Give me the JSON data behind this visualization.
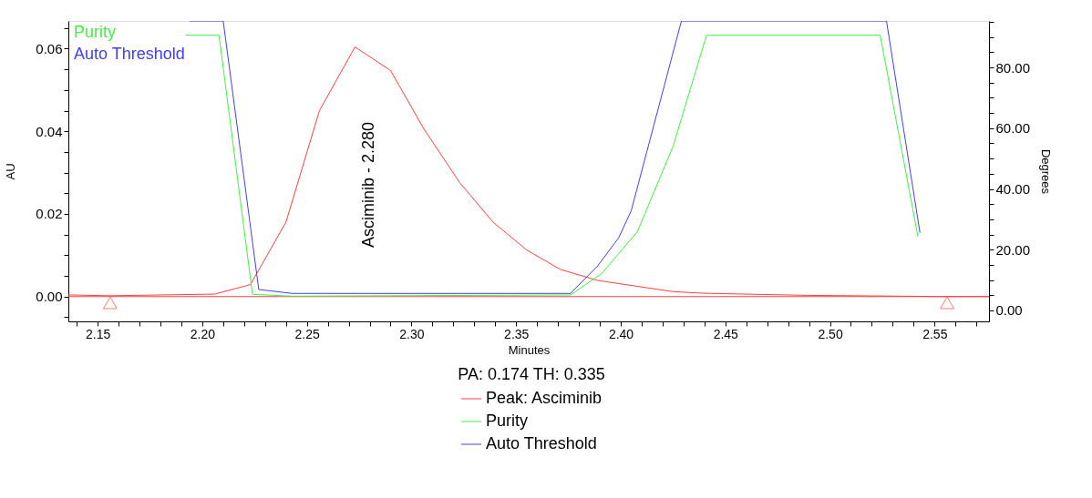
{
  "chart_data": {
    "type": "line",
    "xlabel": "Minutes",
    "ylabel": "AU",
    "y2label": "Degrees",
    "legend_title": "PA:  0.174  TH:  0.335",
    "legend": "bottom",
    "grid": false,
    "line_style": "solid",
    "marker": "none",
    "xlim": [
      2.136,
      2.576
    ],
    "xticks": [
      {
        "value": 2.14,
        "label": null
      },
      {
        "value": 2.15,
        "label": "2.15"
      },
      {
        "value": 2.16,
        "label": null
      },
      {
        "value": 2.17,
        "label": null
      },
      {
        "value": 2.18,
        "label": null
      },
      {
        "value": 2.19,
        "label": null
      },
      {
        "value": 2.2,
        "label": "2.20"
      },
      {
        "value": 2.21,
        "label": null
      },
      {
        "value": 2.22,
        "label": null
      },
      {
        "value": 2.23,
        "label": null
      },
      {
        "value": 2.24,
        "label": null
      },
      {
        "value": 2.25,
        "label": "2.25"
      },
      {
        "value": 2.26,
        "label": null
      },
      {
        "value": 2.27,
        "label": null
      },
      {
        "value": 2.28,
        "label": null
      },
      {
        "value": 2.29,
        "label": null
      },
      {
        "value": 2.3,
        "label": "2.30"
      },
      {
        "value": 2.31,
        "label": null
      },
      {
        "value": 2.32,
        "label": null
      },
      {
        "value": 2.33,
        "label": null
      },
      {
        "value": 2.34,
        "label": null
      },
      {
        "value": 2.35,
        "label": "2.35"
      },
      {
        "value": 2.36,
        "label": null
      },
      {
        "value": 2.37,
        "label": null
      },
      {
        "value": 2.38,
        "label": null
      },
      {
        "value": 2.39,
        "label": null
      },
      {
        "value": 2.4,
        "label": "2.40"
      },
      {
        "value": 2.41,
        "label": null
      },
      {
        "value": 2.42,
        "label": null
      },
      {
        "value": 2.43,
        "label": null
      },
      {
        "value": 2.44,
        "label": null
      },
      {
        "value": 2.45,
        "label": "2.45"
      },
      {
        "value": 2.46,
        "label": null
      },
      {
        "value": 2.47,
        "label": null
      },
      {
        "value": 2.48,
        "label": null
      },
      {
        "value": 2.49,
        "label": null
      },
      {
        "value": 2.5,
        "label": "2.50"
      },
      {
        "value": 2.51,
        "label": null
      },
      {
        "value": 2.52,
        "label": null
      },
      {
        "value": 2.53,
        "label": null
      },
      {
        "value": 2.54,
        "label": null
      },
      {
        "value": 2.55,
        "label": "2.55"
      },
      {
        "value": 2.56,
        "label": null
      },
      {
        "value": 2.57,
        "label": null
      }
    ],
    "ylim": [
      -0.006,
      0.0667
    ],
    "yticks": [
      {
        "value": -0.005,
        "label": null
      },
      {
        "value": 0,
        "label": "0.00"
      },
      {
        "value": 0.005,
        "label": null
      },
      {
        "value": 0.01,
        "label": null
      },
      {
        "value": 0.015,
        "label": null
      },
      {
        "value": 0.02,
        "label": "0.02"
      },
      {
        "value": 0.025,
        "label": null
      },
      {
        "value": 0.03,
        "label": null
      },
      {
        "value": 0.035,
        "label": null
      },
      {
        "value": 0.04,
        "label": "0.04"
      },
      {
        "value": 0.045,
        "label": null
      },
      {
        "value": 0.05,
        "label": null
      },
      {
        "value": 0.055,
        "label": null
      },
      {
        "value": 0.06,
        "label": "0.06"
      },
      {
        "value": 0.065,
        "label": null
      }
    ],
    "y2lim": [
      -3.6,
      95.3
    ],
    "y2ticks": [
      {
        "value": 0,
        "label": "0.00"
      },
      {
        "value": 5,
        "label": null
      },
      {
        "value": 10,
        "label": null
      },
      {
        "value": 15,
        "label": null
      },
      {
        "value": 20,
        "label": "20.00"
      },
      {
        "value": 25,
        "label": null
      },
      {
        "value": 30,
        "label": null
      },
      {
        "value": 35,
        "label": null
      },
      {
        "value": 40,
        "label": "40.00"
      },
      {
        "value": 45,
        "label": null
      },
      {
        "value": 50,
        "label": null
      },
      {
        "value": 55,
        "label": null
      },
      {
        "value": 60,
        "label": "60.00"
      },
      {
        "value": 65,
        "label": null
      },
      {
        "value": 70,
        "label": null
      },
      {
        "value": 75,
        "label": null
      },
      {
        "value": 80,
        "label": "80.00"
      },
      {
        "value": 85,
        "label": null
      },
      {
        "value": 90,
        "label": null
      },
      {
        "value": 95,
        "label": null
      }
    ],
    "ref_lines": [
      {
        "axis": "y",
        "value": 0,
        "color": "#ff4040"
      }
    ],
    "annotations": [
      "Asciminib - 2.280"
    ],
    "series": [
      {
        "name": "Peak: Asciminib",
        "color": "#ff4040",
        "x": [
          2.136,
          2.156,
          2.206,
          2.223,
          2.24,
          2.256,
          2.273,
          2.29,
          2.306,
          2.323,
          2.339,
          2.355,
          2.371,
          2.389,
          2.425,
          2.44,
          2.489,
          2.556,
          2.576
        ],
        "values": [
          0.0004,
          0.0002,
          0.0006,
          0.0029,
          0.018,
          0.045,
          0.0604,
          0.0547,
          0.0405,
          0.0276,
          0.018,
          0.0113,
          0.0066,
          0.0039,
          0.0012,
          0.0008,
          0.0003,
          0.0,
          0.0
        ]
      },
      {
        "name": "Purity",
        "color": "#40f040",
        "axis": "y2",
        "x": [
          2.192,
          2.208,
          2.224,
          2.243,
          2.376,
          2.391,
          2.408,
          2.425,
          2.441,
          2.524,
          2.542
        ],
        "values": [
          90.6,
          90.6,
          5.3,
          4.7,
          5.1,
          12.2,
          26.0,
          54.0,
          90.6,
          90.6,
          24.4
        ]
      },
      {
        "name": "Auto Threshold",
        "color": "#4040f0",
        "axis": "y2",
        "x": [
          2.194,
          2.21,
          2.227,
          2.243,
          2.376,
          2.389,
          2.399,
          2.405,
          2.429,
          2.527,
          2.543
        ],
        "values": [
          95.3,
          95.3,
          6.9,
          5.6,
          5.6,
          14.7,
          23.9,
          32.8,
          95.3,
          95.3,
          25.6
        ]
      },
      {
        "type": "scatter",
        "marker": "triangle",
        "color": "#ff4040",
        "x": [
          2.156,
          2.556
        ],
        "values": [
          -0.0015,
          -0.0015
        ]
      }
    ]
  }
}
